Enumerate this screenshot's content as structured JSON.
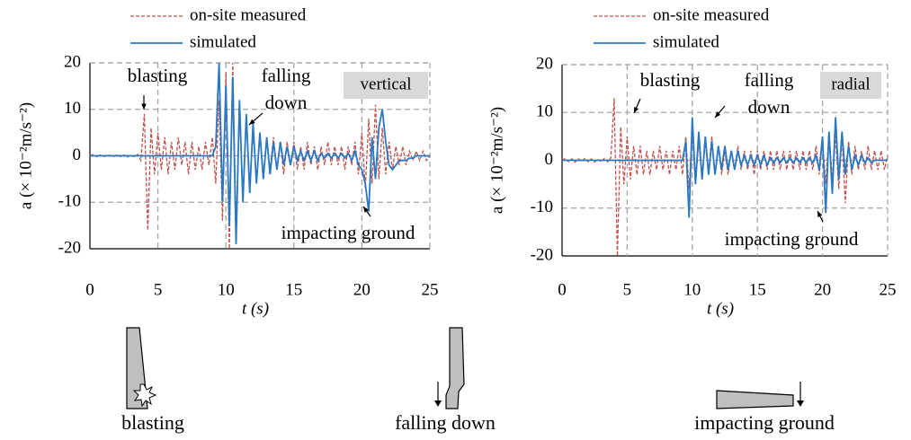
{
  "chart_data": [
    {
      "type": "line",
      "x_label": "t (s)",
      "y_label": "a (× 10⁻²m/s⁻²)",
      "panel_label": "vertical",
      "annotations": [
        {
          "lines": [
            "blasting"
          ]
        },
        {
          "lines": [
            "falling",
            "down"
          ]
        },
        {
          "lines": [
            "impacting ground"
          ]
        }
      ],
      "x": [
        0,
        0.25,
        0.5,
        0.75,
        1,
        1.25,
        1.5,
        1.75,
        2,
        2.25,
        2.5,
        2.75,
        3,
        3.25,
        3.5,
        3.75,
        4,
        4.25,
        4.5,
        4.75,
        5,
        5.25,
        5.5,
        5.75,
        6,
        6.25,
        6.5,
        6.75,
        7,
        7.25,
        7.5,
        7.75,
        8,
        8.25,
        8.5,
        8.75,
        9,
        9.25,
        9.5,
        9.75,
        10,
        10.25,
        10.5,
        10.75,
        11,
        11.25,
        11.5,
        11.75,
        12,
        12.25,
        12.5,
        12.75,
        13,
        13.25,
        13.5,
        13.75,
        14,
        14.25,
        14.5,
        14.75,
        15,
        15.25,
        15.5,
        15.75,
        16,
        16.25,
        16.5,
        16.75,
        17,
        17.25,
        17.5,
        17.75,
        18,
        18.25,
        18.5,
        18.75,
        19,
        19.25,
        19.5,
        19.75,
        20,
        20.25,
        20.5,
        20.75,
        21,
        21.25,
        21.5,
        21.75,
        22,
        22.25,
        22.5,
        22.75,
        23,
        23.25,
        23.5,
        23.75,
        24,
        24.25,
        24.5,
        24.75,
        25
      ],
      "series": [
        {
          "name": "on-site measured",
          "color": "#c0504d",
          "dashed": true,
          "values": [
            0,
            0.3,
            -0.2,
            0.2,
            -0.3,
            0.2,
            0.1,
            -0.2,
            0.3,
            -0.2,
            0.2,
            -0.3,
            0.2,
            -0.2,
            0.3,
            -1,
            9,
            -16,
            6,
            -4,
            5,
            -3,
            4,
            -4,
            3,
            -3,
            4,
            -2,
            3,
            -4,
            3,
            -3,
            2,
            -3,
            3,
            -2,
            4,
            -6,
            12,
            -14,
            18,
            -20,
            20,
            -16,
            10,
            -9,
            8,
            -6,
            5,
            -5,
            4,
            -4,
            3,
            -3,
            4,
            -3,
            3,
            -4,
            3,
            -2,
            3,
            -3,
            2,
            -3,
            3,
            -2,
            2,
            -3,
            2,
            -2,
            3,
            -2,
            2,
            -2,
            2,
            -3,
            2,
            -2,
            3,
            -4,
            5,
            -7,
            8,
            -6,
            11,
            -5,
            6,
            -4,
            3,
            -3,
            2,
            -2,
            2,
            -2,
            1,
            -1,
            1,
            -1,
            1,
            -1,
            0
          ]
        },
        {
          "name": "simulated",
          "color": "#2a78c2",
          "dashed": false,
          "values": [
            0,
            0,
            0,
            0,
            0,
            0,
            0,
            0,
            0,
            0,
            0,
            0,
            0,
            0,
            0,
            0,
            0,
            0,
            0,
            0,
            0,
            0,
            0,
            0,
            0,
            0,
            0,
            0,
            0,
            0,
            0,
            0,
            0,
            0,
            0,
            0,
            0,
            2,
            20,
            -10,
            15,
            -15,
            17,
            -19,
            12,
            -10,
            9,
            -8,
            7,
            -6,
            5,
            -5,
            4,
            -4,
            3,
            -3,
            3,
            -2,
            2,
            -2,
            2,
            -1,
            1,
            -1,
            1,
            -1,
            1,
            -1,
            0.5,
            -0.5,
            0.5,
            -0.5,
            0.5,
            -0.5,
            0.5,
            -0.5,
            0.5,
            -1,
            1,
            -2,
            -3,
            -6,
            -12,
            4,
            -5,
            6,
            10,
            3,
            -2,
            -3,
            -2,
            -1,
            -1,
            -1,
            -0.5,
            -0.5,
            0,
            0,
            0,
            0,
            0
          ]
        }
      ],
      "xlim": [
        0,
        25
      ],
      "xticks": [
        0,
        5,
        10,
        15,
        20,
        25
      ],
      "ylim": [
        -20,
        20
      ],
      "yticks": [
        -20,
        -10,
        0,
        10,
        20
      ],
      "grid": true
    },
    {
      "type": "line",
      "x_label": "t (s)",
      "y_label": "a (× 10⁻²m/s⁻²)",
      "panel_label": "radial",
      "annotations": [
        {
          "lines": [
            "blasting"
          ]
        },
        {
          "lines": [
            "falling",
            "down"
          ]
        },
        {
          "lines": [
            "impacting ground"
          ]
        }
      ],
      "x": [
        0,
        0.25,
        0.5,
        0.75,
        1,
        1.25,
        1.5,
        1.75,
        2,
        2.25,
        2.5,
        2.75,
        3,
        3.25,
        3.5,
        3.75,
        4,
        4.25,
        4.5,
        4.75,
        5,
        5.25,
        5.5,
        5.75,
        6,
        6.25,
        6.5,
        6.75,
        7,
        7.25,
        7.5,
        7.75,
        8,
        8.25,
        8.5,
        8.75,
        9,
        9.25,
        9.5,
        9.75,
        10,
        10.25,
        10.5,
        10.75,
        11,
        11.25,
        11.5,
        11.75,
        12,
        12.25,
        12.5,
        12.75,
        13,
        13.25,
        13.5,
        13.75,
        14,
        14.25,
        14.5,
        14.75,
        15,
        15.25,
        15.5,
        15.75,
        16,
        16.25,
        16.5,
        16.75,
        17,
        17.25,
        17.5,
        17.75,
        18,
        18.25,
        18.5,
        18.75,
        19,
        19.25,
        19.5,
        19.75,
        20,
        20.25,
        20.5,
        20.75,
        21,
        21.25,
        21.5,
        21.75,
        22,
        22.25,
        22.5,
        22.75,
        23,
        23.25,
        23.5,
        23.75,
        24,
        24.25,
        24.5,
        24.75,
        25
      ],
      "series": [
        {
          "name": "on-site measured",
          "color": "#c0504d",
          "dashed": true,
          "values": [
            0,
            0.4,
            -0.3,
            0.3,
            -0.4,
            0.3,
            -0.2,
            0.4,
            -0.3,
            0.3,
            -0.4,
            0.2,
            -0.3,
            0.4,
            -0.3,
            0.5,
            13,
            -20,
            7,
            -5,
            5,
            -4,
            3,
            -3,
            3,
            -3,
            2,
            -3,
            2,
            -2,
            3,
            -2,
            2,
            -3,
            2,
            -2,
            3,
            -3,
            5,
            -6,
            6,
            -5,
            4,
            -4,
            4,
            -3,
            5,
            -3,
            3,
            -3,
            2,
            -3,
            2,
            -2,
            3,
            -2,
            2,
            -2,
            2,
            -3,
            2,
            -2,
            2,
            -2,
            2,
            -2,
            2,
            -2,
            2,
            -2,
            2,
            -2,
            2,
            -2,
            2,
            -2,
            2,
            -2,
            3,
            -3,
            4,
            -5,
            6,
            -4,
            5,
            -6,
            5,
            -9,
            4,
            -3,
            3,
            -2,
            2,
            -2,
            3,
            -2,
            2,
            -2,
            2,
            -2,
            1
          ]
        },
        {
          "name": "simulated",
          "color": "#2a78c2",
          "dashed": false,
          "values": [
            0,
            0,
            0,
            0,
            0,
            0,
            0,
            0,
            0,
            0,
            0,
            0,
            0,
            0,
            0,
            0,
            0,
            0,
            0,
            0,
            0,
            0,
            0,
            0,
            0,
            0,
            0,
            0,
            0,
            0,
            0,
            0,
            0,
            0,
            0,
            0,
            0,
            0,
            4,
            -12,
            9,
            -5,
            6,
            -4,
            5,
            -3,
            4,
            -3,
            3,
            -2,
            3,
            -2,
            2,
            -2,
            2,
            -1,
            1,
            -1,
            1,
            -1,
            1,
            -1,
            1,
            -1,
            0.5,
            -0.5,
            0.5,
            -0.5,
            0.5,
            -0.5,
            0.5,
            -0.5,
            0.5,
            -0.5,
            0.5,
            -0.5,
            0.5,
            -0.5,
            1,
            -2,
            5,
            -11,
            6,
            -7,
            9,
            -4,
            6,
            -3,
            3,
            -2,
            1,
            -1,
            1,
            -0.5,
            0.5,
            -0.5,
            0,
            0,
            0,
            0,
            0
          ]
        }
      ],
      "xlim": [
        0,
        25
      ],
      "xticks": [
        0,
        5,
        10,
        15,
        20,
        25
      ],
      "ylim": [
        -20,
        20
      ],
      "yticks": [
        -20,
        -10,
        0,
        10,
        20
      ],
      "grid": true
    }
  ],
  "illustrations": [
    {
      "caption": "blasting"
    },
    {
      "caption": "falling down"
    },
    {
      "caption": "impacting ground"
    }
  ]
}
